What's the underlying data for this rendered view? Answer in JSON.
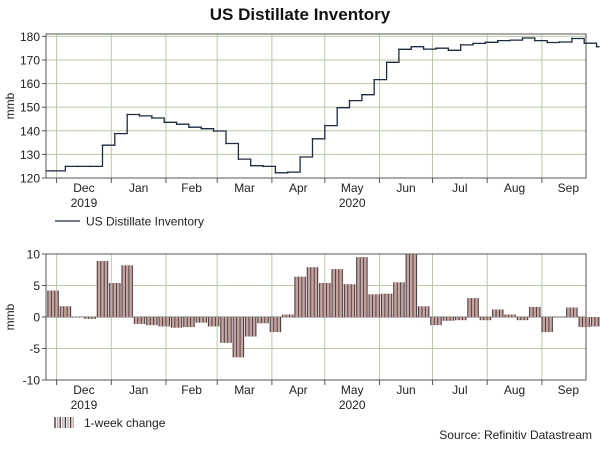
{
  "title": "US Distillate Inventory",
  "source": "Source: Refinitiv Datastream",
  "colors": {
    "line": "#1f2a44",
    "bar_fill": "#c8a39a",
    "bar_edge": "#3a3a4a",
    "grid": "#b8c9a6",
    "axis": "#555555",
    "zero_line": "#777777"
  },
  "chart_data": [
    {
      "type": "line",
      "ylabel": "mmb",
      "ylim": [
        120,
        181
      ],
      "yticks": [
        120,
        130,
        140,
        150,
        160,
        170,
        180
      ],
      "x_ticks": [
        "Dec",
        "Jan",
        "Feb",
        "Mar",
        "Apr",
        "May",
        "Jun",
        "Jul",
        "Aug",
        "Sep"
      ],
      "year_labels": [
        {
          "text": "2019",
          "at_month": "Dec"
        },
        {
          "text": "2020",
          "at_month": "May"
        }
      ],
      "legend": "US Distillate Inventory",
      "legend_position": "bottom-left",
      "grid": true,
      "step": true,
      "series": [
        {
          "name": "US Distillate Inventory",
          "start_date": "2019-11-29",
          "interval_days": 7,
          "values": [
            123.0,
            124.9,
            124.9,
            124.9,
            133.9,
            138.8,
            146.9,
            146.3,
            145.4,
            143.6,
            142.8,
            141.5,
            140.9,
            139.9,
            134.6,
            128.0,
            125.2,
            124.9,
            122.2,
            122.5,
            128.9,
            136.6,
            142.2,
            149.8,
            152.8,
            155.3,
            161.7,
            169.0,
            174.5,
            175.6,
            174.6,
            175.0,
            174.1,
            176.4,
            177.0,
            177.5,
            178.2,
            178.4,
            179.3,
            178.2,
            177.4,
            177.6,
            179.1,
            177.1,
            175.6
          ]
        }
      ]
    },
    {
      "type": "bar",
      "ylabel": "mmb",
      "ylim": [
        -10,
        10
      ],
      "yticks": [
        -10,
        -5,
        0,
        5,
        10
      ],
      "x_ticks": [
        "Dec",
        "Jan",
        "Feb",
        "Mar",
        "Apr",
        "May",
        "Jun",
        "Jul",
        "Aug",
        "Sep"
      ],
      "year_labels": [
        {
          "text": "2019",
          "at_month": "Dec"
        },
        {
          "text": "2020",
          "at_month": "May"
        }
      ],
      "legend": "1-week change",
      "legend_position": "bottom-left",
      "grid": true,
      "series": [
        {
          "name": "1-week change",
          "start_date": "2019-11-29",
          "interval_days": 7,
          "values": [
            4.2,
            1.7,
            0.0,
            -0.3,
            8.9,
            5.4,
            8.2,
            -1.1,
            -1.3,
            -1.5,
            -1.7,
            -1.6,
            -0.9,
            -1.5,
            -4.1,
            -6.4,
            -3.1,
            -1.0,
            -2.4,
            0.4,
            6.4,
            7.9,
            5.4,
            7.6,
            5.2,
            9.5,
            3.6,
            3.7,
            5.5,
            9.9,
            1.7,
            -1.3,
            -0.6,
            -0.5,
            3.0,
            -0.5,
            1.2,
            0.4,
            -0.5,
            1.6,
            -2.4,
            0.0,
            1.5,
            -1.6,
            -1.5
          ]
        }
      ]
    }
  ]
}
